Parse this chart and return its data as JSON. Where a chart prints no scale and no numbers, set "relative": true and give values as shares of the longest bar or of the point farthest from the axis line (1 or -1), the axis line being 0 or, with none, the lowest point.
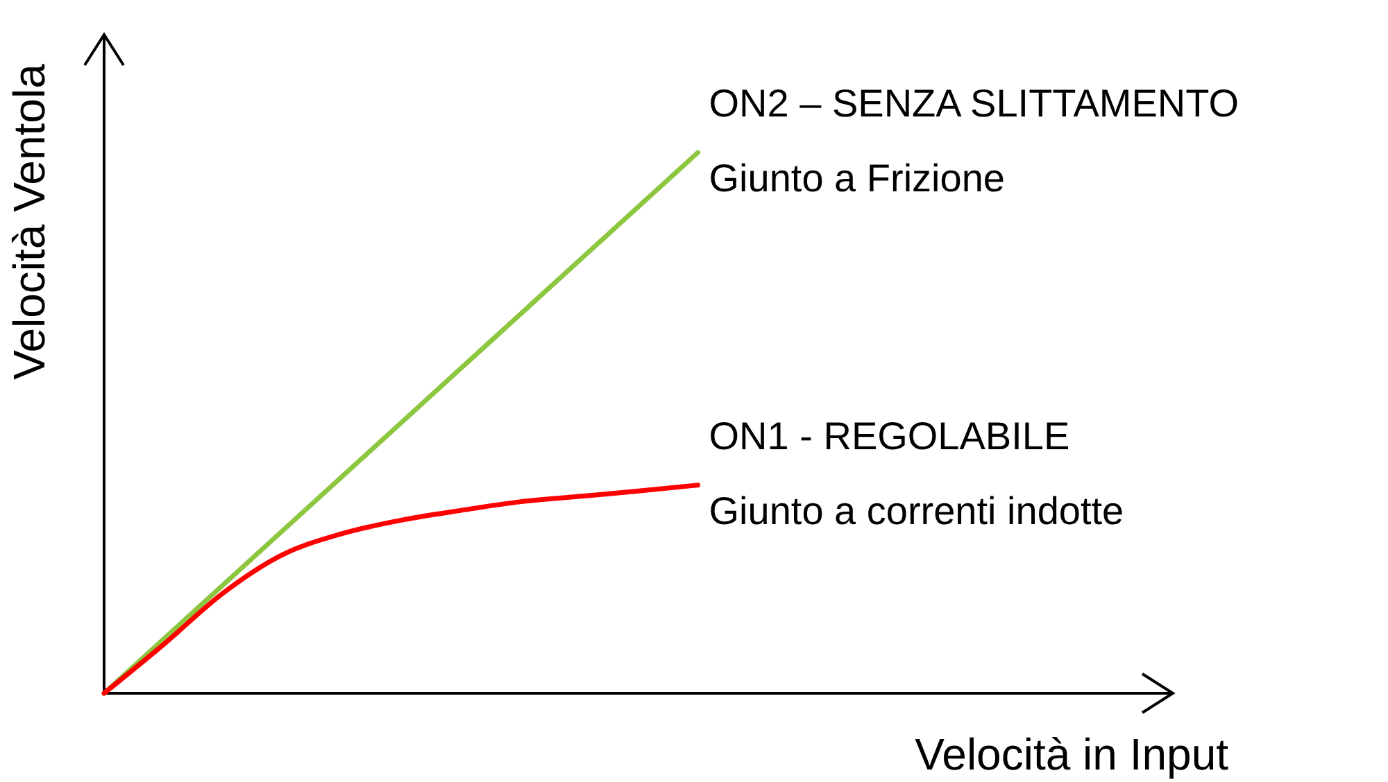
{
  "chart_data": {
    "type": "line",
    "relative": true,
    "xlabel": "Velocità in Input",
    "ylabel": "Velocità Ventola",
    "categories": [
      null,
      null,
      null,
      null,
      null,
      null,
      null,
      null,
      null,
      null,
      null,
      null,
      null,
      null,
      null,
      null,
      null,
      null,
      null
    ],
    "series": [
      {
        "name": "ON2 – SENZA SLITTAMENTO",
        "color": "#8dc63f",
        "values": [
          0,
          0.1,
          0.2,
          0.3,
          0.4,
          0.5,
          0.6,
          0.7,
          0.8,
          0.9,
          1,
          null,
          null,
          null,
          null,
          null,
          null,
          null,
          null
        ]
      },
      {
        "name": "ON1 - REGOLABILE",
        "color": "#ff0000",
        "values": [
          0,
          0.09,
          0.185,
          0.256,
          0.295,
          0.32,
          0.338,
          0.354,
          0.364,
          0.374,
          0.385,
          null,
          null,
          null,
          null,
          null,
          null,
          null,
          null
        ]
      }
    ],
    "annotations": [
      "Giunto a Frizione",
      "Giunto a correnti indotte"
    ],
    "marker": "none"
  }
}
